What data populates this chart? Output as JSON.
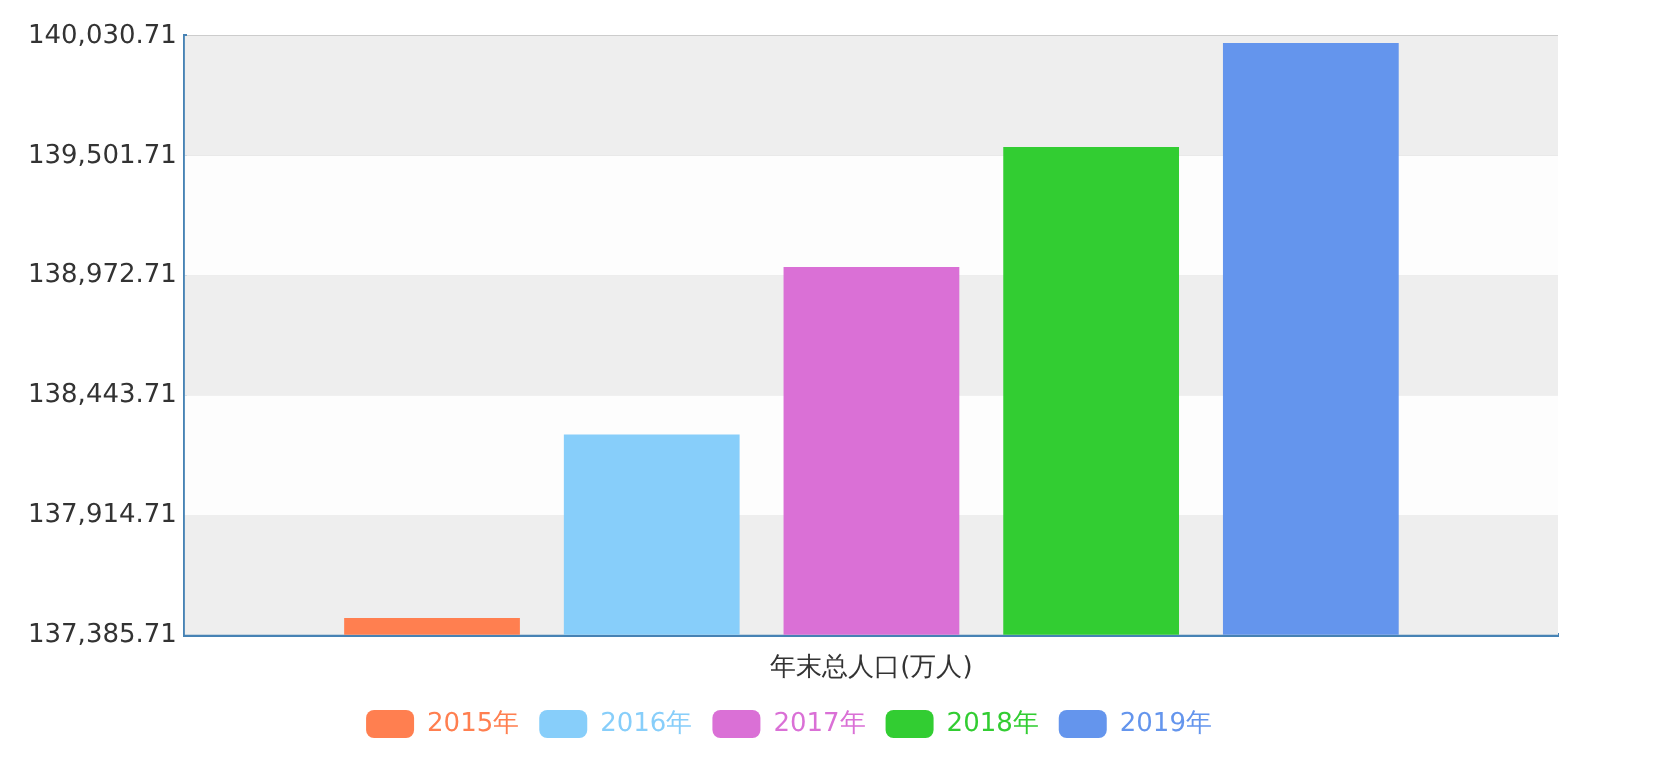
{
  "chart_data": {
    "type": "bar",
    "categories": [
      "年末总人口(万人)"
    ],
    "series": [
      {
        "name": "2015年",
        "color": "#ff7f50",
        "values": [
          137460
        ]
      },
      {
        "name": "2016年",
        "color": "#87cefa",
        "values": [
          138270
        ]
      },
      {
        "name": "2017年",
        "color": "#da70d6",
        "values": [
          139010
        ]
      },
      {
        "name": "2018年",
        "color": "#32cd32",
        "values": [
          139540
        ]
      },
      {
        "name": "2019年",
        "color": "#6495ed",
        "values": [
          140000
        ]
      }
    ],
    "ylim": [
      137385.71,
      140030.71
    ],
    "yticks": [
      {
        "value": 137385.71,
        "label": "137,385.71"
      },
      {
        "value": 137914.71,
        "label": "137,914.71"
      },
      {
        "value": 138443.71,
        "label": "138,443.71"
      },
      {
        "value": 138972.71,
        "label": "138,972.71"
      },
      {
        "value": 139501.71,
        "label": "139,501.71"
      },
      {
        "value": 140030.71,
        "label": "140,030.71"
      }
    ],
    "grid": "y",
    "legend": "bottom"
  }
}
